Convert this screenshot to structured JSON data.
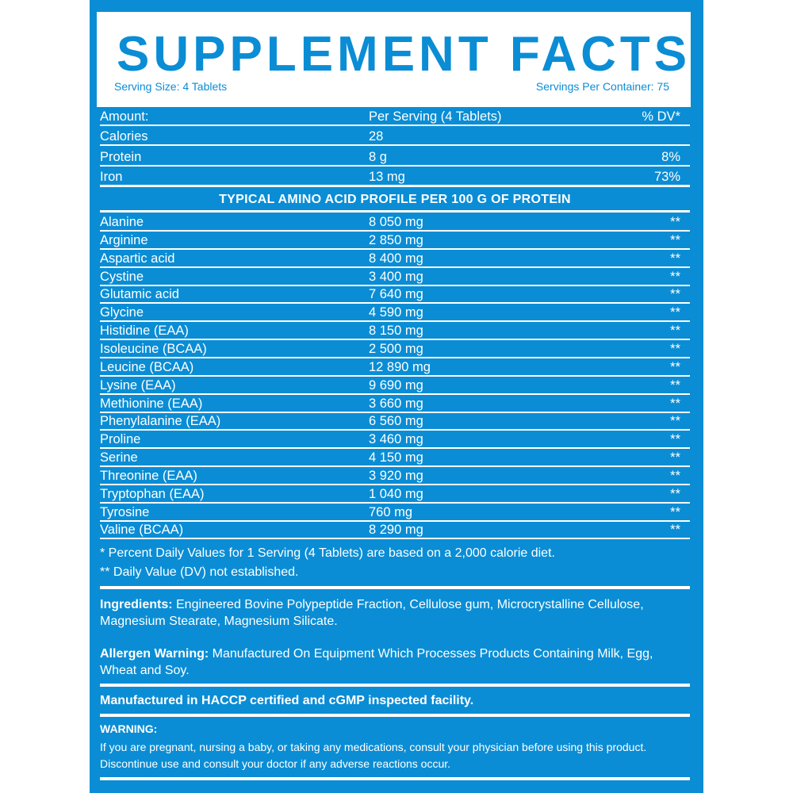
{
  "title": "SUPPLEMENT FACTS",
  "serving_size": "Serving Size: 4 Tablets",
  "servings_per_container": "Servings Per Container: 75",
  "header": {
    "amount": "Amount:",
    "per_serving": "Per Serving (4 Tablets)",
    "dv": "% DV*"
  },
  "nutrients": [
    {
      "name": "Calories",
      "amount": "28",
      "dv": ""
    },
    {
      "name": "Protein",
      "amount": "8 g",
      "dv": "8%"
    },
    {
      "name": "Iron",
      "amount": "13 mg",
      "dv": "73%"
    }
  ],
  "amino_heading": "TYPICAL AMINO ACID PROFILE PER 100 G OF PROTEIN",
  "amino_acids": [
    {
      "name": "Alanine",
      "amount": "8 050 mg",
      "dv": "**"
    },
    {
      "name": "Arginine",
      "amount": "2 850 mg",
      "dv": "**"
    },
    {
      "name": "Aspartic acid",
      "amount": "8 400 mg",
      "dv": "**"
    },
    {
      "name": "Cystine",
      "amount": "3 400 mg",
      "dv": "**"
    },
    {
      "name": "Glutamic acid",
      "amount": "7 640 mg",
      "dv": "**"
    },
    {
      "name": "Glycine",
      "amount": "4 590 mg",
      "dv": "**"
    },
    {
      "name": "Histidine (EAA)",
      "amount": "8 150 mg",
      "dv": "**"
    },
    {
      "name": "Isoleucine (BCAA)",
      "amount": "2 500 mg",
      "dv": "**"
    },
    {
      "name": "Leucine (BCAA)",
      "amount": "12 890 mg",
      "dv": "**"
    },
    {
      "name": "Lysine (EAA)",
      "amount": "9 690 mg",
      "dv": "**"
    },
    {
      "name": "Methionine (EAA)",
      "amount": "3 660 mg",
      "dv": "**"
    },
    {
      "name": "Phenylalanine (EAA)",
      "amount": "6 560 mg",
      "dv": "**"
    },
    {
      "name": "Proline",
      "amount": "3 460 mg",
      "dv": "**"
    },
    {
      "name": "Serine",
      "amount": "4 150 mg",
      "dv": "**"
    },
    {
      "name": "Threonine (EAA)",
      "amount": "3 920 mg",
      "dv": "**"
    },
    {
      "name": "Tryptophan (EAA)",
      "amount": "1 040 mg",
      "dv": "**"
    },
    {
      "name": "Tyrosine",
      "amount": "760 mg",
      "dv": "**"
    },
    {
      "name": "Valine (BCAA)",
      "amount": "8 290 mg",
      "dv": "**"
    }
  ],
  "footnote1": "* Percent Daily Values for 1 Serving (4 Tablets) are based on a 2,000 calorie diet.",
  "footnote2": "** Daily Value (DV) not established.",
  "ingredients_label": "Ingredients:",
  "ingredients": " Engineered Bovine Polypeptide Fraction, Cellulose gum, Microcrystalline Cellulose, Magnesium Stearate, Magnesium Silicate.",
  "allergen_label": "Allergen Warning:",
  "allergen": " Manufactured On Equipment Which Processes Products Containing Milk, Egg, Wheat and Soy.",
  "facility": "Manufactured in HACCP certified and cGMP inspected facility.",
  "warning_label": "WARNING:",
  "warning": "If you are pregnant, nursing a baby, or taking any medications, consult your physician before using this product. Discontinue use and consult your doctor if any adverse reactions occur.",
  "colors": {
    "brand_blue": "#0a8dd5",
    "text": "#ffffff"
  }
}
